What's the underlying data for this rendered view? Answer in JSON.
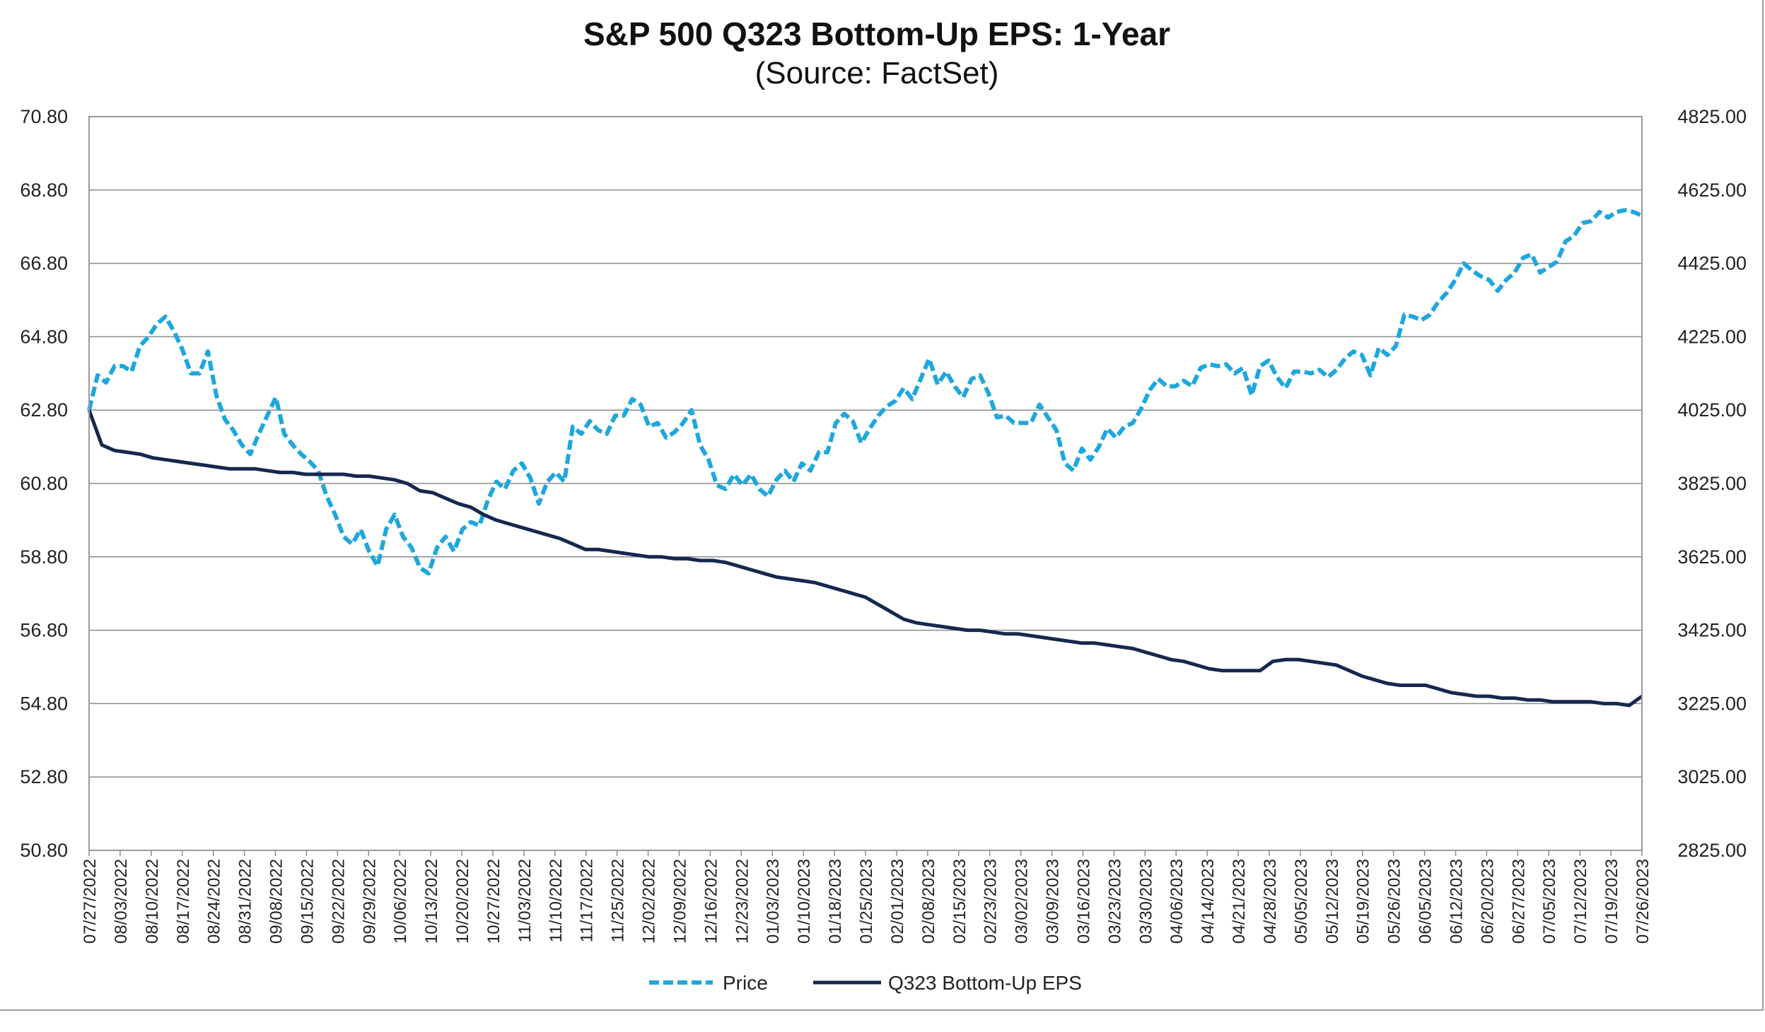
{
  "chart_data": {
    "type": "line",
    "title": "S&P 500 Q323 Bottom-Up EPS: 1-Year",
    "subtitle": "(Source: FactSet)",
    "x_tick_labels": [
      "07/27/2022",
      "08/03/2022",
      "08/10/2022",
      "08/17/2022",
      "08/24/2022",
      "08/31/2022",
      "09/08/2022",
      "09/15/2022",
      "09/22/2022",
      "09/29/2022",
      "10/06/2022",
      "10/13/2022",
      "10/20/2022",
      "10/27/2022",
      "11/03/2022",
      "11/10/2022",
      "11/17/2022",
      "11/25/2022",
      "12/02/2022",
      "12/09/2022",
      "12/16/2022",
      "12/23/2022",
      "01/03/2023",
      "01/10/2023",
      "01/18/2023",
      "01/25/2023",
      "02/01/2023",
      "02/08/2023",
      "02/15/2023",
      "02/23/2023",
      "03/02/2023",
      "03/09/2023",
      "03/16/2023",
      "03/23/2023",
      "03/30/2023",
      "04/06/2023",
      "04/14/2023",
      "04/21/2023",
      "04/28/2023",
      "05/05/2023",
      "05/12/2023",
      "05/19/2023",
      "05/26/2023",
      "06/05/2023",
      "06/12/2023",
      "06/20/2023",
      "06/27/2023",
      "07/05/2023",
      "07/12/2023",
      "07/19/2023",
      "07/26/2023"
    ],
    "y_left": {
      "min": 50.8,
      "max": 70.8,
      "step": 2,
      "tick_labels": [
        "50.80",
        "52.80",
        "54.80",
        "56.80",
        "58.80",
        "60.80",
        "62.80",
        "64.80",
        "66.80",
        "68.80",
        "70.80"
      ]
    },
    "y_right": {
      "min": 2825,
      "max": 4825,
      "step": 200,
      "tick_labels": [
        "2825.00",
        "3025.00",
        "3225.00",
        "3425.00",
        "3625.00",
        "3825.00",
        "4025.00",
        "4225.00",
        "4425.00",
        "4625.00",
        "4825.00"
      ]
    },
    "grid": true,
    "legend_position": "bottom-center",
    "series": [
      {
        "name": "Price",
        "axis": "right",
        "style": "dashed",
        "color": "#1ea7dc",
        "values": [
          4025,
          4120,
          4100,
          4145,
          4145,
          4130,
          4200,
          4225,
          4260,
          4280,
          4240,
          4190,
          4125,
          4125,
          4185,
          4065,
          4000,
          3970,
          3930,
          3905,
          3960,
          4010,
          4060,
          3960,
          3930,
          3905,
          3885,
          3860,
          3790,
          3740,
          3680,
          3660,
          3700,
          3640,
          3600,
          3700,
          3740,
          3680,
          3650,
          3595,
          3580,
          3650,
          3680,
          3640,
          3700,
          3720,
          3710,
          3780,
          3830,
          3810,
          3860,
          3880,
          3840,
          3770,
          3830,
          3855,
          3830,
          3980,
          3960,
          3995,
          3970,
          3960,
          4010,
          4010,
          4055,
          4040,
          3980,
          3990,
          3950,
          3965,
          3990,
          4025,
          3930,
          3890,
          3820,
          3810,
          3850,
          3820,
          3850,
          3810,
          3790,
          3835,
          3860,
          3830,
          3880,
          3860,
          3910,
          3910,
          3990,
          4015,
          3995,
          3935,
          3975,
          4010,
          4035,
          4050,
          4085,
          4055,
          4110,
          4165,
          4095,
          4130,
          4090,
          4060,
          4110,
          4120,
          4070,
          4005,
          4010,
          3990,
          3990,
          3990,
          4040,
          4005,
          3970,
          3880,
          3860,
          3920,
          3890,
          3925,
          3975,
          3950,
          3980,
          3990,
          4030,
          4080,
          4110,
          4090,
          4090,
          4105,
          4090,
          4140,
          4150,
          4145,
          4150,
          4125,
          4140,
          4065,
          4145,
          4160,
          4115,
          4085,
          4130,
          4130,
          4125,
          4135,
          4115,
          4135,
          4165,
          4185,
          4175,
          4120,
          4195,
          4175,
          4200,
          4285,
          4280,
          4270,
          4285,
          4320,
          4345,
          4380,
          4425,
          4405,
          4390,
          4380,
          4350,
          4380,
          4400,
          4440,
          4450,
          4400,
          4415,
          4430,
          4485,
          4500,
          4535,
          4540,
          4565,
          4550,
          4565,
          4570,
          4565,
          4555
        ]
      },
      {
        "name": "Q323 Bottom-Up EPS",
        "axis": "left",
        "style": "solid",
        "color": "#16284f",
        "values": [
          62.8,
          61.85,
          61.7,
          61.65,
          61.6,
          61.5,
          61.45,
          61.4,
          61.35,
          61.3,
          61.25,
          61.2,
          61.2,
          61.2,
          61.15,
          61.1,
          61.1,
          61.05,
          61.05,
          61.05,
          61.05,
          61.0,
          61.0,
          60.95,
          60.9,
          60.8,
          60.6,
          60.55,
          60.4,
          60.25,
          60.15,
          59.95,
          59.8,
          59.7,
          59.6,
          59.5,
          59.4,
          59.3,
          59.15,
          59.0,
          59.0,
          58.95,
          58.9,
          58.85,
          58.8,
          58.8,
          58.75,
          58.75,
          58.7,
          58.7,
          58.65,
          58.55,
          58.45,
          58.35,
          58.25,
          58.2,
          58.15,
          58.1,
          58.0,
          57.9,
          57.8,
          57.7,
          57.5,
          57.3,
          57.1,
          57.0,
          56.95,
          56.9,
          56.85,
          56.8,
          56.8,
          56.75,
          56.7,
          56.7,
          56.65,
          56.6,
          56.55,
          56.5,
          56.45,
          56.45,
          56.4,
          56.35,
          56.3,
          56.2,
          56.1,
          56.0,
          55.95,
          55.85,
          55.75,
          55.7,
          55.7,
          55.7,
          55.7,
          55.95,
          56.0,
          56.0,
          55.95,
          55.9,
          55.85,
          55.7,
          55.55,
          55.45,
          55.35,
          55.3,
          55.3,
          55.3,
          55.2,
          55.1,
          55.05,
          55.0,
          55.0,
          54.95,
          54.95,
          54.9,
          54.9,
          54.85,
          54.85,
          54.85,
          54.85,
          54.8,
          54.8,
          54.75,
          55.0
        ]
      }
    ]
  }
}
